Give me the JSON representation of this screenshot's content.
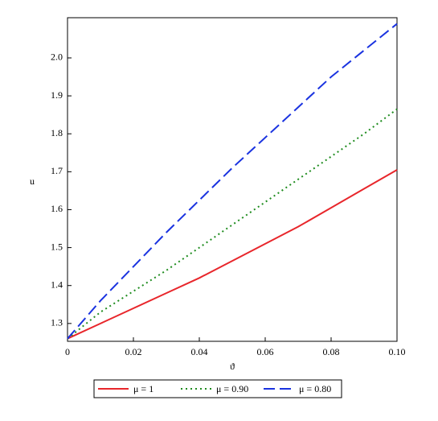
{
  "chart_data": {
    "type": "line",
    "x_label": "ϑ",
    "y_label": "u",
    "x": [
      0,
      0.01,
      0.02,
      0.03,
      0.04,
      0.05,
      0.06,
      0.07,
      0.08,
      0.09,
      0.1
    ],
    "series": [
      {
        "name": "μ = 1",
        "color": "#e8262b",
        "dash": "solid",
        "values": [
          1.26,
          1.3,
          1.34,
          1.38,
          1.42,
          1.465,
          1.51,
          1.555,
          1.605,
          1.655,
          1.705
        ]
      },
      {
        "name": "μ = 0.90",
        "color": "#1e8c1e",
        "dash": "dotted",
        "values": [
          1.26,
          1.33,
          1.385,
          1.44,
          1.5,
          1.56,
          1.62,
          1.68,
          1.74,
          1.8,
          1.865
        ]
      },
      {
        "name": "μ = 0.80",
        "color": "#1a33e0",
        "dash": "dashed",
        "values": [
          1.26,
          1.36,
          1.45,
          1.54,
          1.625,
          1.71,
          1.79,
          1.87,
          1.95,
          2.02,
          2.09
        ]
      }
    ],
    "xlim": [
      0,
      0.1
    ],
    "ylim": [
      1.253,
      2.106
    ],
    "xticks": [
      0,
      0.02,
      0.04,
      0.06,
      0.08,
      {
        "value": 0.1,
        "label": "0.10"
      }
    ],
    "yticks": [
      1.3,
      1.4,
      1.5,
      1.6,
      1.7,
      1.8,
      1.9,
      {
        "value": 2,
        "label": "2.0"
      }
    ],
    "legend": "bottom"
  }
}
